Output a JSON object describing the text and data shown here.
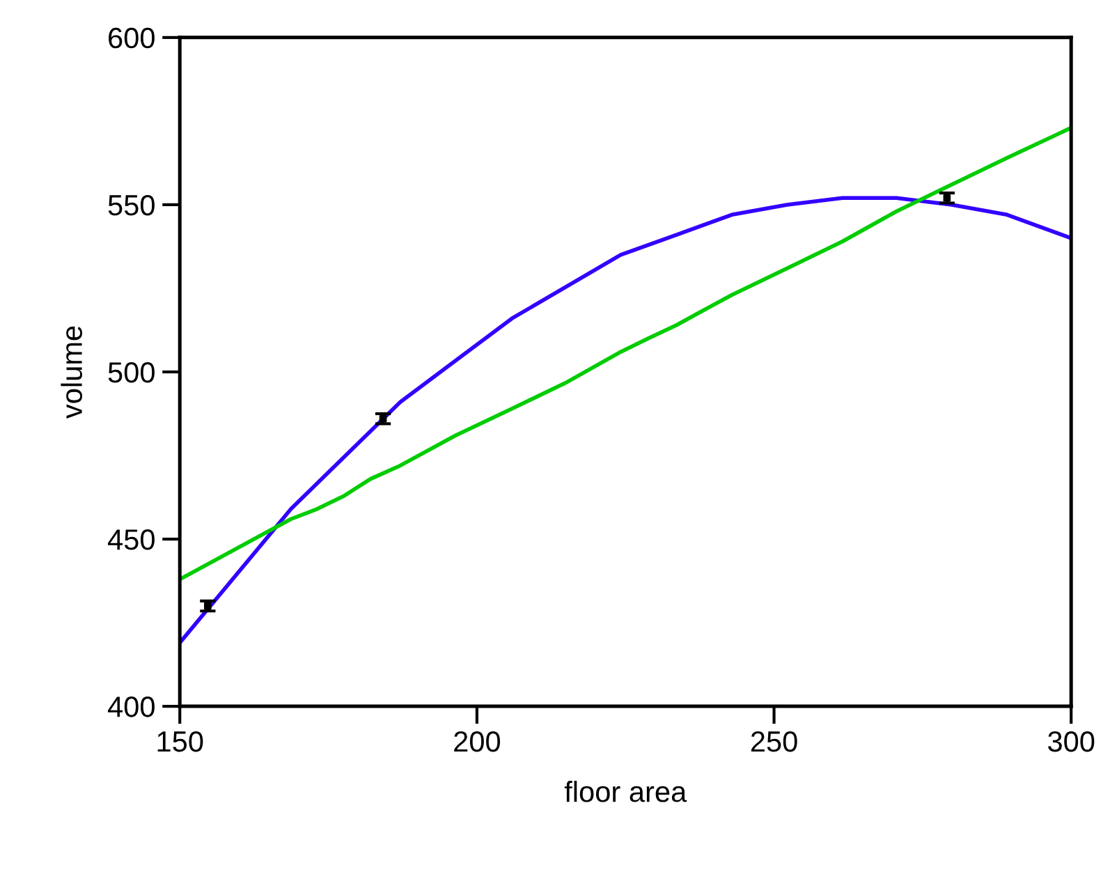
{
  "chart_data": {
    "type": "line",
    "xlabel": "floor area",
    "ylabel": "volume",
    "xlim": [
      150,
      300
    ],
    "ylim": [
      400,
      600
    ],
    "xticks": [
      150,
      200,
      250,
      300
    ],
    "yticks": [
      400,
      450,
      500,
      550,
      600
    ],
    "grid": false,
    "legend": false,
    "series": [
      {
        "color": "#3300ff",
        "marker": "none",
        "x": [
          150,
          168.7,
          187.1,
          205.9,
          224.2,
          233.6,
          242.9,
          252.2,
          261.5,
          270.6,
          279.9,
          289.2,
          300
        ],
        "values": [
          419,
          459,
          491,
          516,
          535,
          541,
          547,
          550,
          552,
          552,
          550,
          547,
          540
        ]
      },
      {
        "color": "#00cc00",
        "marker": "none",
        "x": [
          150,
          168.7,
          173.1,
          177.7,
          182.1,
          187.1,
          196.4,
          205.9,
          215.2,
          224.2,
          228.8,
          233.6,
          237.7,
          242.9,
          252.2,
          261.5,
          270.6,
          279.9,
          289.2,
          300
        ],
        "values": [
          438,
          456,
          459,
          463,
          468,
          472,
          481,
          489,
          497,
          506,
          510,
          514,
          518,
          523,
          531,
          539,
          548,
          556,
          564,
          573
        ]
      },
      {
        "type": "scatter",
        "color": "#000000",
        "marker": "square",
        "x": [
          154.7,
          184.2,
          279.1
        ],
        "values": [
          430,
          486,
          552
        ],
        "errors": [
          1.5,
          1.5,
          1.5
        ]
      }
    ]
  }
}
